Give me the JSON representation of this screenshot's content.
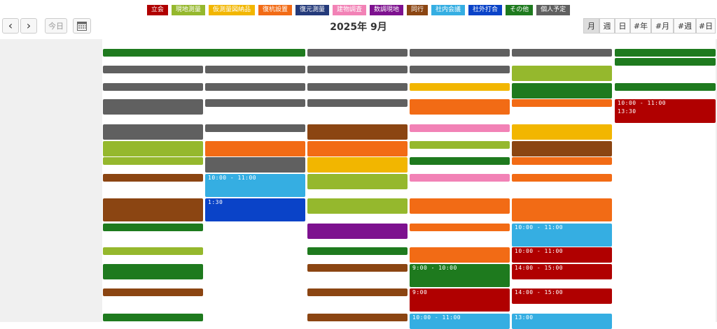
{
  "legend": [
    {
      "label": "立会",
      "color": "#b00000"
    },
    {
      "label": "現地測量",
      "color": "#95b82d"
    },
    {
      "label": "仮測量図納品",
      "color": "#f2b600"
    },
    {
      "label": "復杭設置",
      "color": "#f26b15"
    },
    {
      "label": "復元測量",
      "color": "#243a7a"
    },
    {
      "label": "建物調査",
      "color": "#f282b6"
    },
    {
      "label": "数調現地",
      "color": "#7d118f"
    },
    {
      "label": "同行",
      "color": "#8b4512"
    },
    {
      "label": "社内会議",
      "color": "#35aee2"
    },
    {
      "label": "社外打合",
      "color": "#0a43c8"
    },
    {
      "label": "その他",
      "color": "#1e7a1e"
    },
    {
      "label": "個人予定",
      "color": "#606060"
    }
  ],
  "toolbar": {
    "prev": "‹",
    "next": "›",
    "today": "今日",
    "calendar_icon": "calendar-icon",
    "title": "2025年 9月",
    "views": [
      "月",
      "週",
      "日",
      "#年",
      "#月",
      "#週",
      "#日"
    ],
    "active_view": "月"
  },
  "event_times": {
    "a": "10:00 - 11:00",
    "b": "13:30",
    "c": "10:00 - 11:00",
    "d": "10:00 - 11:00",
    "e": "14:00 - 15:00",
    "f": "14:00 - 15:00",
    "g": "13:00",
    "h": "10:00 - 11:00",
    "i": "9:00 - 10:00",
    "j": "9:00",
    "k": "1:30",
    "l": "9:00",
    "m": "13:00"
  }
}
